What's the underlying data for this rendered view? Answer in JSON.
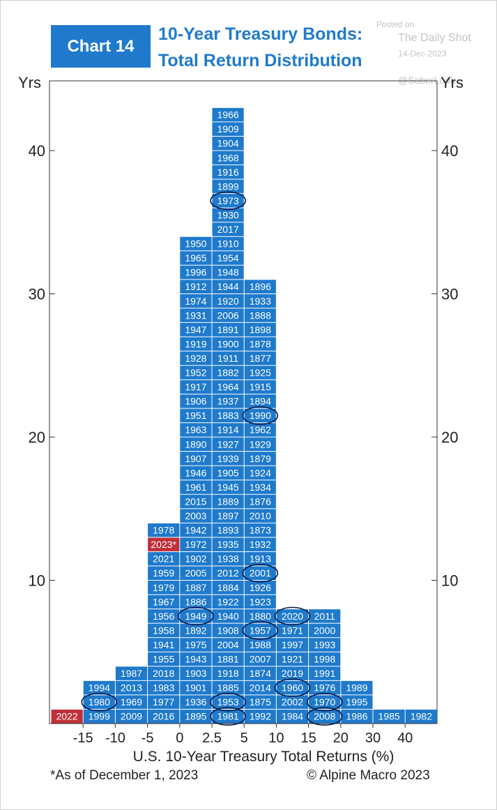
{
  "header": {
    "badge": "Chart 14",
    "title_line1": "10-Year Treasury Bonds:",
    "title_line2": "Total Return Distribution"
  },
  "watermark": {
    "posted_on": "Posted on",
    "source": "The Daily Shot",
    "date": "14-Dec-2023",
    "handle": "@SoberLook"
  },
  "footer": {
    "note": "*As of December 1, 2023",
    "copyright": "© Alpine Macro 2023"
  },
  "colors": {
    "bar": "#1f7acc",
    "highlight": "#c0303a",
    "circle": "#0a1a4a",
    "axis": "#333333"
  },
  "chart_data": {
    "type": "bar",
    "xlabel": "U.S. 10-Year Treasury Total Returns (%)",
    "ylabel_left": "Yrs",
    "ylabel_right": "Yrs",
    "ylim": [
      0,
      45
    ],
    "yticks": [
      10,
      20,
      30,
      40
    ],
    "grid": false,
    "x_tick_labels": [
      "-15",
      "-10",
      "-5",
      "0",
      "2.5",
      "5",
      "10",
      "15",
      "20",
      "30",
      "40"
    ],
    "highlighted_years": [
      "2022",
      "2023*"
    ],
    "circled_years": [
      "1980",
      "1973",
      "1949",
      "1953",
      "1981",
      "1990",
      "2001",
      "1957",
      "2020",
      "1960",
      "1970",
      "2008"
    ],
    "bins": [
      {
        "range": "< -15",
        "count": 1,
        "years": [
          "2022"
        ]
      },
      {
        "range": "-15 to -10",
        "count": 3,
        "years": [
          "1999",
          "1980",
          "1994"
        ]
      },
      {
        "range": "-10 to -5",
        "count": 4,
        "years": [
          "2009",
          "1969",
          "2013",
          "1987"
        ]
      },
      {
        "range": "-5 to 0",
        "count": 14,
        "years": [
          "2016",
          "1977",
          "1983",
          "2018",
          "1955",
          "1941",
          "1958",
          "1956",
          "1967",
          "1979",
          "1959",
          "2021",
          "2023*",
          "1978"
        ]
      },
      {
        "range": "0 to 2.5",
        "count": 34,
        "years": [
          "1895",
          "1936",
          "1901",
          "1903",
          "1943",
          "1975",
          "1892",
          "1949",
          "1886",
          "1887",
          "2005",
          "1902",
          "1972",
          "1942",
          "2003",
          "2015",
          "1961",
          "1946",
          "1907",
          "1890",
          "1963",
          "1951",
          "1906",
          "1917",
          "1952",
          "1928",
          "1919",
          "1947",
          "1931",
          "1974",
          "1912",
          "1996",
          "1965",
          "1950"
        ]
      },
      {
        "range": "2.5 to 5",
        "count": 43,
        "years": [
          "1981",
          "1953",
          "1885",
          "1918",
          "1881",
          "2004",
          "1908",
          "1940",
          "1922",
          "1884",
          "2012",
          "1938",
          "1935",
          "1893",
          "1897",
          "1889",
          "1945",
          "1905",
          "1939",
          "1927",
          "1914",
          "1883",
          "1937",
          "1964",
          "1882",
          "1911",
          "1900",
          "1891",
          "2006",
          "1920",
          "1944",
          "1948",
          "1954",
          "1910",
          "2017",
          "1930",
          "1973",
          "1899",
          "1916",
          "1968",
          "1904",
          "1909",
          "1966"
        ]
      },
      {
        "range": "5 to 10",
        "count": 31,
        "years": [
          "1992",
          "1875",
          "2014",
          "1874",
          "2007",
          "1988",
          "1957",
          "1880",
          "1923",
          "1926",
          "2001",
          "1913",
          "1932",
          "1873",
          "2010",
          "1876",
          "1934",
          "1924",
          "1879",
          "1929",
          "1962",
          "1990",
          "1894",
          "1915",
          "1925",
          "1877",
          "1878",
          "1898",
          "1888",
          "1933",
          "1896"
        ]
      },
      {
        "range": "10 to 15",
        "count": 8,
        "years": [
          "1984",
          "2002",
          "1960",
          "2019",
          "1921",
          "1997",
          "1971",
          "2020"
        ]
      },
      {
        "range": "15 to 20",
        "count": 8,
        "years": [
          "2008",
          "1970",
          "1976",
          "1991",
          "1998",
          "1993",
          "2000",
          "2011"
        ]
      },
      {
        "range": "20 to 30",
        "count": 3,
        "years": [
          "1986",
          "1995",
          "1989"
        ]
      },
      {
        "range": "30 to 40",
        "count": 1,
        "years": [
          "1985"
        ]
      },
      {
        "range": "> 40",
        "count": 1,
        "years": [
          "1982"
        ]
      }
    ]
  }
}
